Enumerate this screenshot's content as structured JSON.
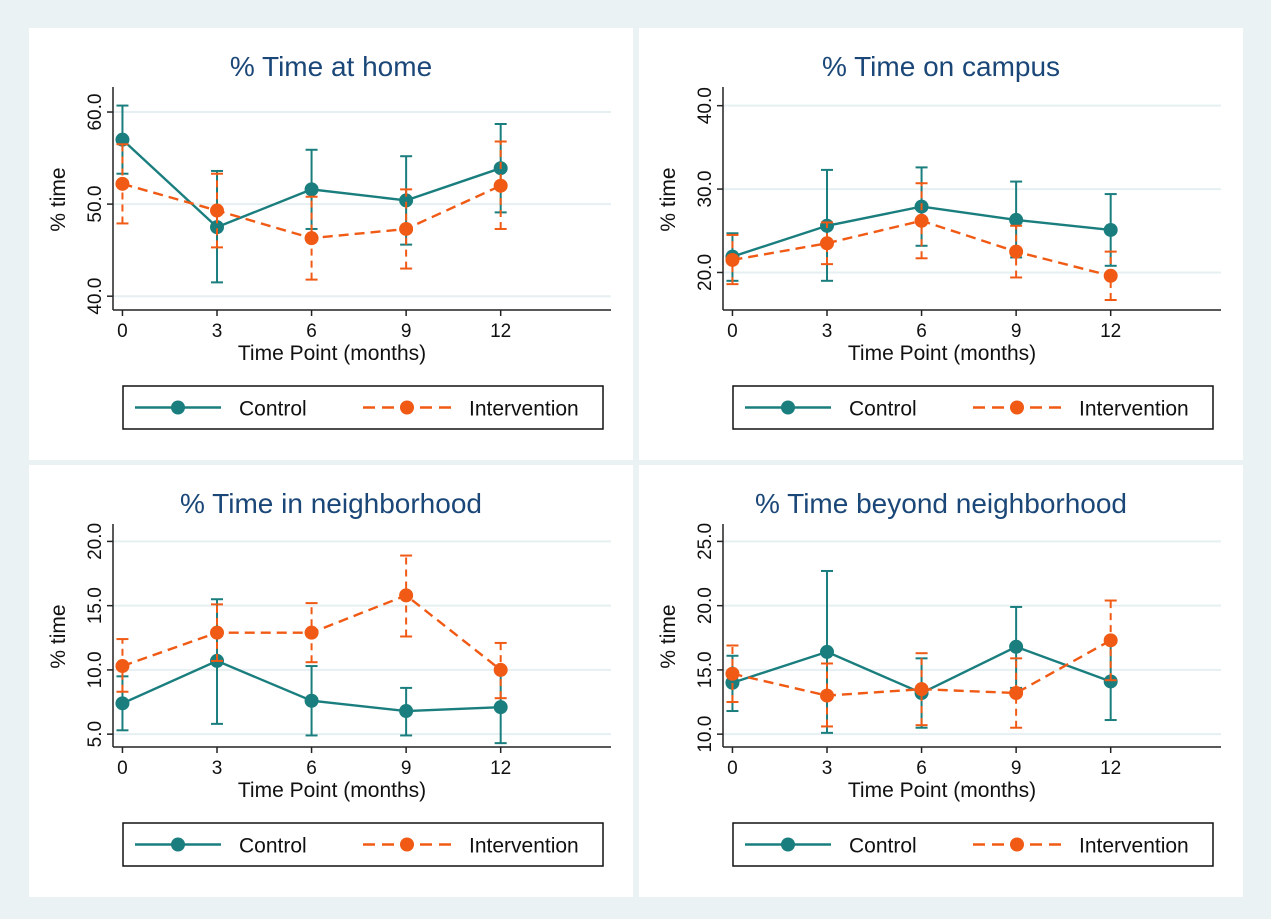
{
  "colors": {
    "control": "#1a7e7e",
    "intervention": "#f05a14",
    "title": "#1a4778",
    "grid": "#e6eff1",
    "background": "#eaf2f3"
  },
  "chart_data": [
    {
      "type": "line",
      "title": "% Time at home",
      "xlabel": "Time Point (months)",
      "ylabel": "% time",
      "x": [
        0,
        3,
        6,
        9,
        12
      ],
      "xlim": [
        -0.3,
        15.5
      ],
      "ylim": [
        38.5,
        62.5
      ],
      "yticks": [
        40,
        50,
        60
      ],
      "ytick_labels": [
        "40.0",
        "50.0",
        "60.0"
      ],
      "xtick_labels": [
        "0",
        "3",
        "6",
        "9",
        "12"
      ],
      "grid": true,
      "legend_position": "bottom",
      "series": [
        {
          "name": "Control",
          "style": "solid",
          "values": [
            57.0,
            47.5,
            51.6,
            50.4,
            53.9
          ],
          "lower": [
            53.3,
            41.5,
            47.3,
            45.6,
            49.1
          ],
          "upper": [
            60.7,
            53.6,
            55.9,
            55.2,
            58.7
          ]
        },
        {
          "name": "Intervention",
          "style": "dashed",
          "values": [
            52.2,
            49.3,
            46.3,
            47.3,
            52.0
          ],
          "lower": [
            47.9,
            45.3,
            41.8,
            43.0,
            47.3
          ],
          "upper": [
            56.5,
            53.3,
            50.8,
            51.6,
            56.8
          ]
        }
      ]
    },
    {
      "type": "line",
      "title": "% Time on campus",
      "xlabel": "Time Point (months)",
      "ylabel": "% time",
      "x": [
        0,
        3,
        6,
        9,
        12
      ],
      "xlim": [
        -0.3,
        15.5
      ],
      "ylim": [
        15.5,
        42
      ],
      "yticks": [
        20,
        30,
        40
      ],
      "ytick_labels": [
        "20.0",
        "30.0",
        "40.0"
      ],
      "xtick_labels": [
        "0",
        "3",
        "6",
        "9",
        "12"
      ],
      "grid": true,
      "legend_position": "bottom",
      "series": [
        {
          "name": "Control",
          "style": "solid",
          "values": [
            21.9,
            25.6,
            27.9,
            26.3,
            25.1
          ],
          "lower": [
            19.0,
            19.0,
            23.2,
            21.8,
            20.8
          ],
          "upper": [
            24.7,
            32.3,
            32.6,
            30.9,
            29.4
          ]
        },
        {
          "name": "Intervention",
          "style": "dashed",
          "values": [
            21.5,
            23.5,
            26.2,
            22.5,
            19.6
          ],
          "lower": [
            18.6,
            21.0,
            21.7,
            19.4,
            16.7
          ],
          "upper": [
            24.5,
            26.0,
            30.7,
            25.6,
            22.5
          ]
        }
      ]
    },
    {
      "type": "line",
      "title": "% Time in neighborhood",
      "xlabel": "Time Point (months)",
      "ylabel": "% time",
      "x": [
        0,
        3,
        6,
        9,
        12
      ],
      "xlim": [
        -0.3,
        15.5
      ],
      "ylim": [
        4.0,
        21.2
      ],
      "yticks": [
        5,
        10,
        15,
        20
      ],
      "ytick_labels": [
        "5.0",
        "10.0",
        "15.0",
        "20.0"
      ],
      "xtick_labels": [
        "0",
        "3",
        "6",
        "9",
        "12"
      ],
      "grid": true,
      "legend_position": "bottom",
      "series": [
        {
          "name": "Control",
          "style": "solid",
          "values": [
            7.4,
            10.7,
            7.6,
            6.8,
            7.1
          ],
          "lower": [
            5.3,
            5.8,
            4.9,
            4.9,
            4.3
          ],
          "upper": [
            9.5,
            15.5,
            10.3,
            8.6,
            10.0
          ]
        },
        {
          "name": "Intervention",
          "style": "dashed",
          "values": [
            10.3,
            12.9,
            12.9,
            15.8,
            10.0
          ],
          "lower": [
            8.3,
            10.7,
            10.6,
            12.6,
            7.8
          ],
          "upper": [
            12.4,
            15.1,
            15.2,
            18.9,
            12.1
          ]
        }
      ]
    },
    {
      "type": "line",
      "title": "% Time beyond neighborhood",
      "xlabel": "Time Point (months)",
      "ylabel": "% time",
      "x": [
        0,
        3,
        6,
        9,
        12
      ],
      "xlim": [
        -0.3,
        15.5
      ],
      "ylim": [
        9.0,
        26.2
      ],
      "yticks": [
        10,
        15,
        20,
        25
      ],
      "ytick_labels": [
        "10.0",
        "15.0",
        "20.0",
        "25.0"
      ],
      "xtick_labels": [
        "0",
        "3",
        "6",
        "9",
        "12"
      ],
      "grid": true,
      "legend_position": "bottom",
      "series": [
        {
          "name": "Control",
          "style": "solid",
          "values": [
            14.0,
            16.4,
            13.2,
            16.8,
            14.1
          ],
          "lower": [
            11.8,
            10.1,
            10.5,
            13.6,
            11.1
          ],
          "upper": [
            16.1,
            22.7,
            15.9,
            19.9,
            17.1
          ]
        },
        {
          "name": "Intervention",
          "style": "dashed",
          "values": [
            14.7,
            13.0,
            13.5,
            13.2,
            17.3
          ],
          "lower": [
            12.5,
            10.6,
            10.7,
            10.5,
            14.2
          ],
          "upper": [
            16.9,
            15.5,
            16.3,
            15.9,
            20.4
          ]
        }
      ]
    }
  ]
}
